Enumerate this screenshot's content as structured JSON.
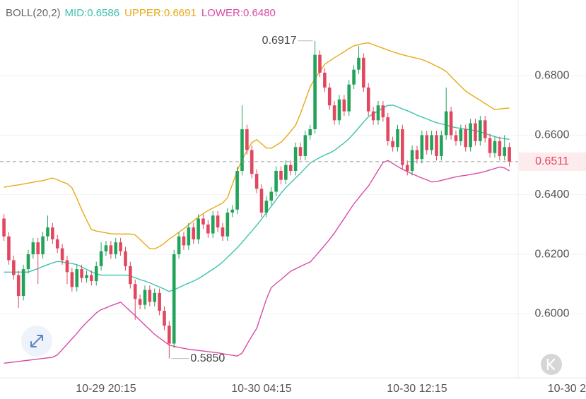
{
  "chart_data": {
    "type": "candlestick",
    "indicator": "BOLL(20,2)",
    "indicator_color": "#666666",
    "categories": [
      null,
      null,
      null,
      null,
      null,
      null,
      null,
      null,
      null,
      null,
      null,
      null,
      null,
      null,
      null,
      null,
      null,
      null,
      null,
      null,
      null,
      "10-29 20:15",
      null,
      null,
      null,
      null,
      null,
      null,
      null,
      null,
      null,
      null,
      null,
      null,
      null,
      null,
      null,
      null,
      null,
      null,
      null,
      null,
      null,
      null,
      null,
      null,
      null,
      null,
      null,
      null,
      null,
      null,
      null,
      "10-30 04:15",
      null,
      null,
      null,
      null,
      null,
      null,
      null,
      null,
      null,
      null,
      null,
      null,
      null,
      null,
      null,
      null,
      null,
      null,
      null,
      null,
      null,
      null,
      null,
      null,
      null,
      null,
      null,
      null,
      null,
      null,
      null,
      "10-30 12:15",
      null,
      null,
      null,
      null,
      null,
      null,
      null,
      null,
      null,
      null,
      null,
      null,
      null,
      null,
      null,
      null,
      null,
      null,
      null,
      null,
      null,
      null,
      null,
      null,
      null,
      null,
      null,
      null,
      null,
      null,
      null,
      "10-30 2"
    ],
    "open": [
      0.632,
      0.626,
      0.618,
      0.613,
      0.606,
      0.615,
      0.62,
      0.624,
      0.62,
      0.626,
      0.629,
      0.625,
      0.622,
      0.618,
      0.614,
      0.609,
      0.615,
      0.612,
      0.613,
      0.611,
      0.616,
      0.621,
      0.623,
      0.62,
      0.624,
      0.621,
      0.616,
      0.61,
      0.605,
      0.603,
      0.608,
      0.604,
      0.607,
      0.601,
      0.596,
      0.59,
      0.62,
      0.626,
      0.623,
      0.629,
      0.625,
      0.632,
      0.63,
      0.627,
      0.633,
      0.629,
      0.626,
      0.634,
      0.635,
      0.648,
      0.662,
      0.655,
      0.647,
      0.642,
      0.634,
      0.638,
      0.641,
      0.648,
      0.645,
      0.65,
      0.648,
      0.656,
      0.653,
      0.66,
      0.662,
      0.687,
      0.681,
      0.676,
      0.67,
      0.665,
      0.672,
      0.668,
      0.677,
      0.682,
      0.686,
      0.676,
      0.668,
      0.665,
      0.67,
      0.666,
      0.658,
      0.656,
      0.662,
      0.65,
      0.648,
      0.655,
      0.652,
      0.66,
      0.655,
      0.66,
      0.653,
      0.66,
      0.668,
      0.66,
      0.658,
      0.662,
      0.656,
      0.664,
      0.658,
      0.665,
      0.659,
      0.654,
      0.658,
      0.653,
      0.656,
      null,
      null,
      null,
      null,
      null,
      null,
      null,
      null,
      null,
      null,
      null,
      null,
      null
    ],
    "high": [
      0.6335,
      0.6275,
      0.6195,
      0.6145,
      0.6165,
      0.6215,
      0.6255,
      0.6255,
      0.6275,
      0.633,
      0.6305,
      0.6265,
      0.6235,
      0.6195,
      0.6155,
      0.6165,
      0.6165,
      0.6145,
      0.6145,
      0.6175,
      0.624,
      0.6245,
      0.6245,
      0.6255,
      0.6255,
      0.6225,
      0.6175,
      0.6115,
      0.6065,
      0.6095,
      0.6095,
      0.6085,
      0.6085,
      0.6025,
      0.5975,
      0.6215,
      0.6275,
      0.6275,
      0.6305,
      0.6305,
      0.6335,
      0.6335,
      0.6315,
      0.6345,
      0.6345,
      0.6305,
      0.6355,
      0.6365,
      0.6495,
      0.67,
      0.6635,
      0.6565,
      0.6485,
      0.6435,
      0.6395,
      0.6425,
      0.6495,
      0.6495,
      0.6515,
      0.6515,
      0.6575,
      0.6575,
      0.6615,
      0.6635,
      0.6917,
      0.6885,
      0.6825,
      0.6775,
      0.6715,
      0.6735,
      0.6735,
      0.6785,
      0.6835,
      0.69,
      0.6875,
      0.6775,
      0.6695,
      0.6715,
      0.6715,
      0.6675,
      0.6595,
      0.6635,
      0.6635,
      0.6515,
      0.6565,
      0.6565,
      0.6615,
      0.6615,
      0.6615,
      0.6615,
      0.6615,
      0.676,
      0.6695,
      0.6615,
      0.6635,
      0.6635,
      0.6655,
      0.6655,
      0.6665,
      0.6665,
      0.6605,
      0.6595,
      0.6595,
      0.66,
      0.6575,
      null,
      null,
      null,
      null,
      null,
      null,
      null,
      null,
      null,
      null,
      null,
      null,
      null
    ],
    "low": [
      0.6245,
      0.6165,
      0.6115,
      0.602,
      0.6045,
      0.6135,
      0.6185,
      0.61,
      0.6185,
      0.6245,
      0.6235,
      0.6205,
      0.6165,
      0.61,
      0.6075,
      0.6075,
      0.6105,
      0.6105,
      0.6095,
      0.6095,
      0.6145,
      0.6195,
      0.6185,
      0.6185,
      0.6195,
      0.6145,
      0.6085,
      0.598,
      0.6015,
      0.6015,
      0.6025,
      0.6025,
      0.5995,
      0.5945,
      0.585,
      0.5885,
      0.6185,
      0.6215,
      0.6215,
      0.6235,
      0.6235,
      0.6285,
      0.6255,
      0.6255,
      0.6275,
      0.6245,
      0.6245,
      0.6325,
      0.6335,
      0.6465,
      0.6535,
      0.6455,
      0.6405,
      0.6325,
      0.6325,
      0.6365,
      0.6395,
      0.6435,
      0.6435,
      0.6465,
      0.6465,
      0.6515,
      0.6515,
      0.6585,
      0.6605,
      0.6795,
      0.6745,
      0.6685,
      0.6635,
      0.6635,
      0.6665,
      0.6665,
      0.6755,
      0.6805,
      0.6745,
      0.6665,
      0.6635,
      0.6635,
      0.6645,
      0.6565,
      0.6545,
      0.6545,
      0.6485,
      0.6465,
      0.6465,
      0.6505,
      0.6505,
      0.6535,
      0.6535,
      0.6515,
      0.6515,
      0.6585,
      0.6585,
      0.6565,
      0.6565,
      0.6545,
      0.6545,
      0.6565,
      0.6565,
      0.6575,
      0.6525,
      0.6525,
      0.6515,
      0.6515,
      0.6495,
      null,
      null,
      null,
      null,
      null,
      null,
      null,
      null,
      null,
      null,
      null,
      null,
      null
    ],
    "close": [
      0.626,
      0.618,
      0.613,
      0.606,
      0.615,
      0.62,
      0.624,
      0.62,
      0.626,
      0.629,
      0.625,
      0.622,
      0.618,
      0.614,
      0.609,
      0.615,
      0.612,
      0.613,
      0.611,
      0.616,
      0.621,
      0.623,
      0.62,
      0.624,
      0.621,
      0.616,
      0.61,
      0.605,
      0.603,
      0.608,
      0.604,
      0.607,
      0.601,
      0.596,
      0.59,
      0.62,
      0.626,
      0.623,
      0.629,
      0.625,
      0.632,
      0.63,
      0.627,
      0.633,
      0.629,
      0.626,
      0.634,
      0.635,
      0.648,
      0.662,
      0.655,
      0.647,
      0.642,
      0.634,
      0.638,
      0.641,
      0.648,
      0.645,
      0.65,
      0.648,
      0.656,
      0.653,
      0.66,
      0.662,
      0.687,
      0.681,
      0.676,
      0.67,
      0.665,
      0.672,
      0.668,
      0.677,
      0.682,
      0.686,
      0.676,
      0.668,
      0.665,
      0.67,
      0.666,
      0.658,
      0.656,
      0.662,
      0.65,
      0.648,
      0.655,
      0.652,
      0.66,
      0.655,
      0.66,
      0.653,
      0.66,
      0.668,
      0.66,
      0.658,
      0.662,
      0.656,
      0.664,
      0.658,
      0.665,
      0.659,
      0.654,
      0.658,
      0.653,
      0.656,
      0.6511,
      null,
      null,
      null,
      null,
      null,
      null,
      null,
      null,
      null,
      null,
      null,
      null,
      null
    ],
    "up_color": "#22a35a",
    "down_color": "#e1475f",
    "series": [
      {
        "name": "MID:0.6586",
        "color": "#3cc3ae",
        "values": [
          0.614,
          0.614,
          0.614,
          0.614,
          0.614,
          0.614,
          0.6146,
          0.6152,
          0.6159,
          0.6165,
          0.6171,
          0.6176,
          0.6174,
          0.6171,
          0.6169,
          0.6165,
          0.6157,
          0.6149,
          0.6141,
          0.6134,
          0.613,
          0.613,
          0.613,
          0.613,
          0.613,
          0.613,
          0.6127,
          0.6121,
          0.6115,
          0.611,
          0.6104,
          0.6097,
          0.609,
          0.6083,
          0.6075,
          0.6081,
          0.6088,
          0.6096,
          0.6103,
          0.611,
          0.6118,
          0.6128,
          0.6139,
          0.615,
          0.6161,
          0.6174,
          0.619,
          0.6206,
          0.6222,
          0.624,
          0.6259,
          0.6278,
          0.6297,
          0.6318,
          0.634,
          0.6361,
          0.6383,
          0.6405,
          0.6424,
          0.644,
          0.6456,
          0.6472,
          0.6489,
          0.6506,
          0.6516,
          0.6525,
          0.6533,
          0.654,
          0.6549,
          0.6561,
          0.6574,
          0.6588,
          0.6606,
          0.6625,
          0.6644,
          0.6662,
          0.6672,
          0.6681,
          0.6691,
          0.67,
          0.6701,
          0.6695,
          0.6688,
          0.6682,
          0.6675,
          0.6667,
          0.6661,
          0.6655,
          0.6648,
          0.6642,
          0.6638,
          0.6634,
          0.6629,
          0.6625,
          0.6623,
          0.662,
          0.6618,
          0.6615,
          0.6611,
          0.6606,
          0.66,
          0.6595,
          0.6591,
          0.6588,
          0.6586,
          null,
          null,
          null,
          null,
          null,
          null,
          null,
          null,
          null,
          null,
          null,
          null,
          null
        ]
      },
      {
        "name": "UPPER:0.6691",
        "color": "#e8a916",
        "values": [
          0.6425,
          0.6428,
          0.6431,
          0.6433,
          0.6436,
          0.6439,
          0.6442,
          0.6445,
          0.6447,
          0.6452,
          0.6456,
          0.645,
          0.6443,
          0.6437,
          0.6423,
          0.6388,
          0.635,
          0.6315,
          0.6283,
          0.6278,
          0.6275,
          0.6272,
          0.6269,
          0.6268,
          0.6268,
          0.6268,
          0.6268,
          0.6265,
          0.625,
          0.6234,
          0.6219,
          0.6218,
          0.6226,
          0.6237,
          0.6251,
          0.6262,
          0.6274,
          0.6286,
          0.6299,
          0.6312,
          0.6325,
          0.6337,
          0.6347,
          0.6355,
          0.6364,
          0.6372,
          0.639,
          0.6435,
          0.648,
          0.6518,
          0.6547,
          0.6575,
          0.6585,
          0.6571,
          0.6557,
          0.6556,
          0.6566,
          0.6576,
          0.6593,
          0.6613,
          0.6633,
          0.6672,
          0.6717,
          0.6762,
          0.679,
          0.6814,
          0.6838,
          0.6849,
          0.686,
          0.687,
          0.688,
          0.6891,
          0.69,
          0.6904,
          0.6908,
          0.691,
          0.6904,
          0.6898,
          0.6892,
          0.6886,
          0.688,
          0.6875,
          0.687,
          0.6866,
          0.6862,
          0.6858,
          0.6854,
          0.6848,
          0.684,
          0.6832,
          0.6824,
          0.6814,
          0.6797,
          0.678,
          0.6764,
          0.6748,
          0.6737,
          0.6727,
          0.6717,
          0.6706,
          0.6696,
          0.6686,
          0.6688,
          0.669,
          0.6691,
          null,
          null,
          null,
          null,
          null,
          null,
          null,
          null,
          null,
          null,
          null,
          null,
          null
        ]
      },
      {
        "name": "LOWER:0.6480",
        "color": "#d84ca6",
        "values": [
          0.5834,
          0.5836,
          0.5838,
          0.584,
          0.5842,
          0.5844,
          0.5846,
          0.5848,
          0.585,
          0.5852,
          0.5854,
          0.5862,
          0.588,
          0.5898,
          0.5916,
          0.5934,
          0.5954,
          0.5971,
          0.5987,
          0.6003,
          0.6014,
          0.602,
          0.6027,
          0.6033,
          0.6039,
          0.6024,
          0.6009,
          0.5994,
          0.5978,
          0.5962,
          0.5947,
          0.5931,
          0.5919,
          0.5907,
          0.5895,
          0.5891,
          0.5887,
          0.5884,
          0.5881,
          0.5879,
          0.5877,
          0.5875,
          0.5873,
          0.5871,
          0.5869,
          0.5866,
          0.5863,
          0.5861,
          0.5858,
          0.5868,
          0.5897,
          0.5925,
          0.5951,
          0.6,
          0.6049,
          0.6088,
          0.6102,
          0.6115,
          0.6129,
          0.6143,
          0.6151,
          0.6159,
          0.6167,
          0.6174,
          0.6192,
          0.6211,
          0.623,
          0.625,
          0.6271,
          0.6296,
          0.632,
          0.6345,
          0.6369,
          0.6389,
          0.641,
          0.6429,
          0.6455,
          0.6482,
          0.6508,
          0.6515,
          0.6505,
          0.6495,
          0.6485,
          0.6478,
          0.647,
          0.6463,
          0.6456,
          0.645,
          0.6443,
          0.6444,
          0.6448,
          0.6452,
          0.6456,
          0.646,
          0.6463,
          0.6465,
          0.6468,
          0.6471,
          0.6474,
          0.6478,
          0.6483,
          0.6488,
          0.6493,
          0.649,
          0.648,
          null,
          null,
          null,
          null,
          null,
          null,
          null,
          null,
          null,
          null,
          null,
          null,
          null
        ]
      }
    ],
    "ylim": [
      0.5785,
      0.7054
    ],
    "yticks": [
      {
        "value": 0.6,
        "label": "0.6000"
      },
      {
        "value": 0.62,
        "label": "0.6200"
      },
      {
        "value": 0.64,
        "label": "0.6400"
      },
      {
        "value": 0.66,
        "label": "0.6600"
      },
      {
        "value": 0.68,
        "label": "0.6800"
      }
    ],
    "grid": true,
    "high_label": {
      "value": 0.6917,
      "label": "0.6917"
    },
    "low_label": {
      "value": 0.585,
      "label": "0.5850"
    },
    "last_price": 0.6511,
    "last_price_color": "#e1475f"
  }
}
